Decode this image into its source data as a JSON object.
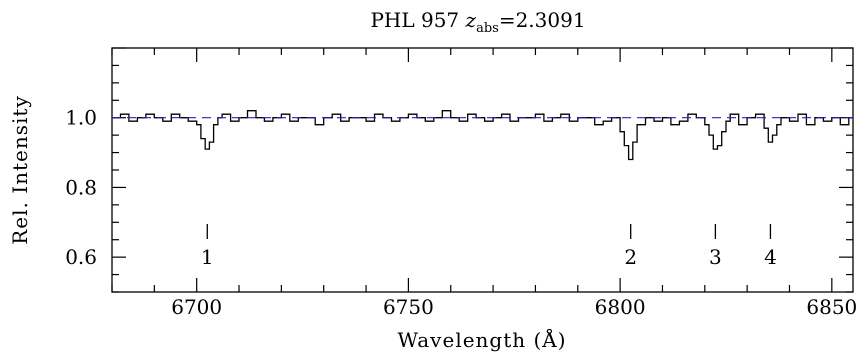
{
  "chart_data": {
    "type": "line",
    "title_prefix": "PHL 957 ",
    "title_z": "z",
    "title_sub": "abs",
    "title_suffix": "=2.3091",
    "xlabel": "Wavelength (Å)",
    "ylabel": "Rel. Intensity",
    "xlim": [
      6680,
      6855
    ],
    "ylim": [
      0.5,
      1.2
    ],
    "xticks": [
      6700,
      6750,
      6800,
      6850
    ],
    "yticks": [
      0.6,
      0.8,
      1.0
    ],
    "ytick_labels": [
      "0.6",
      "0.8",
      "1.0"
    ],
    "grid": false,
    "series": [
      {
        "style": "steps",
        "color": "#000000",
        "x": [
          6680,
          6682,
          6684,
          6686,
          6688,
          6690,
          6692,
          6694,
          6696,
          6698,
          6700,
          6701,
          6702,
          6703,
          6704,
          6705,
          6706,
          6708,
          6710,
          6712,
          6714,
          6716,
          6718,
          6720,
          6722,
          6724,
          6726,
          6728,
          6730,
          6732,
          6734,
          6736,
          6738,
          6740,
          6742,
          6744,
          6746,
          6748,
          6750,
          6752,
          6754,
          6756,
          6758,
          6760,
          6762,
          6764,
          6766,
          6768,
          6770,
          6772,
          6774,
          6776,
          6778,
          6780,
          6782,
          6784,
          6786,
          6788,
          6790,
          6792,
          6794,
          6796,
          6798,
          6800,
          6801,
          6802,
          6803,
          6804,
          6806,
          6808,
          6810,
          6812,
          6814,
          6816,
          6818,
          6820,
          6821,
          6822,
          6823,
          6824,
          6825,
          6826,
          6828,
          6830,
          6832,
          6834,
          6835,
          6836,
          6837,
          6838,
          6840,
          6842,
          6844,
          6846,
          6848,
          6850,
          6852,
          6854
        ],
        "y": [
          1.0,
          1.01,
          0.99,
          1.0,
          1.01,
          1.0,
          0.99,
          1.01,
          1.0,
          0.99,
          0.98,
          0.94,
          0.91,
          0.93,
          0.98,
          1.0,
          1.01,
          0.99,
          1.0,
          1.02,
          1.0,
          0.99,
          1.0,
          1.01,
          0.99,
          1.0,
          1.0,
          0.98,
          1.0,
          1.01,
          0.99,
          1.0,
          1.0,
          0.99,
          1.01,
          1.0,
          0.99,
          1.0,
          1.01,
          1.0,
          0.99,
          1.0,
          1.02,
          1.0,
          0.99,
          1.01,
          1.0,
          0.99,
          1.0,
          1.01,
          0.99,
          1.0,
          1.0,
          1.01,
          0.99,
          1.0,
          1.01,
          0.99,
          1.0,
          1.0,
          0.98,
          0.99,
          1.0,
          0.96,
          0.92,
          0.88,
          0.93,
          0.98,
          1.0,
          0.99,
          1.0,
          0.98,
          0.99,
          1.01,
          1.0,
          0.98,
          0.95,
          0.91,
          0.92,
          0.96,
          0.99,
          1.01,
          0.98,
          1.0,
          1.01,
          0.97,
          0.93,
          0.95,
          0.98,
          1.0,
          0.99,
          1.01,
          0.98,
          1.0,
          0.99,
          1.0,
          0.98,
          1.0
        ]
      },
      {
        "style": "dashed",
        "color": "#2222cc",
        "x": [
          6680,
          6855
        ],
        "y": [
          1.0,
          1.0
        ]
      }
    ],
    "line_ids": [
      {
        "label": "1",
        "x": 6702.5
      },
      {
        "label": "2",
        "x": 6802.5
      },
      {
        "label": "3",
        "x": 6822.5
      },
      {
        "label": "4",
        "x": 6835.5
      }
    ]
  }
}
